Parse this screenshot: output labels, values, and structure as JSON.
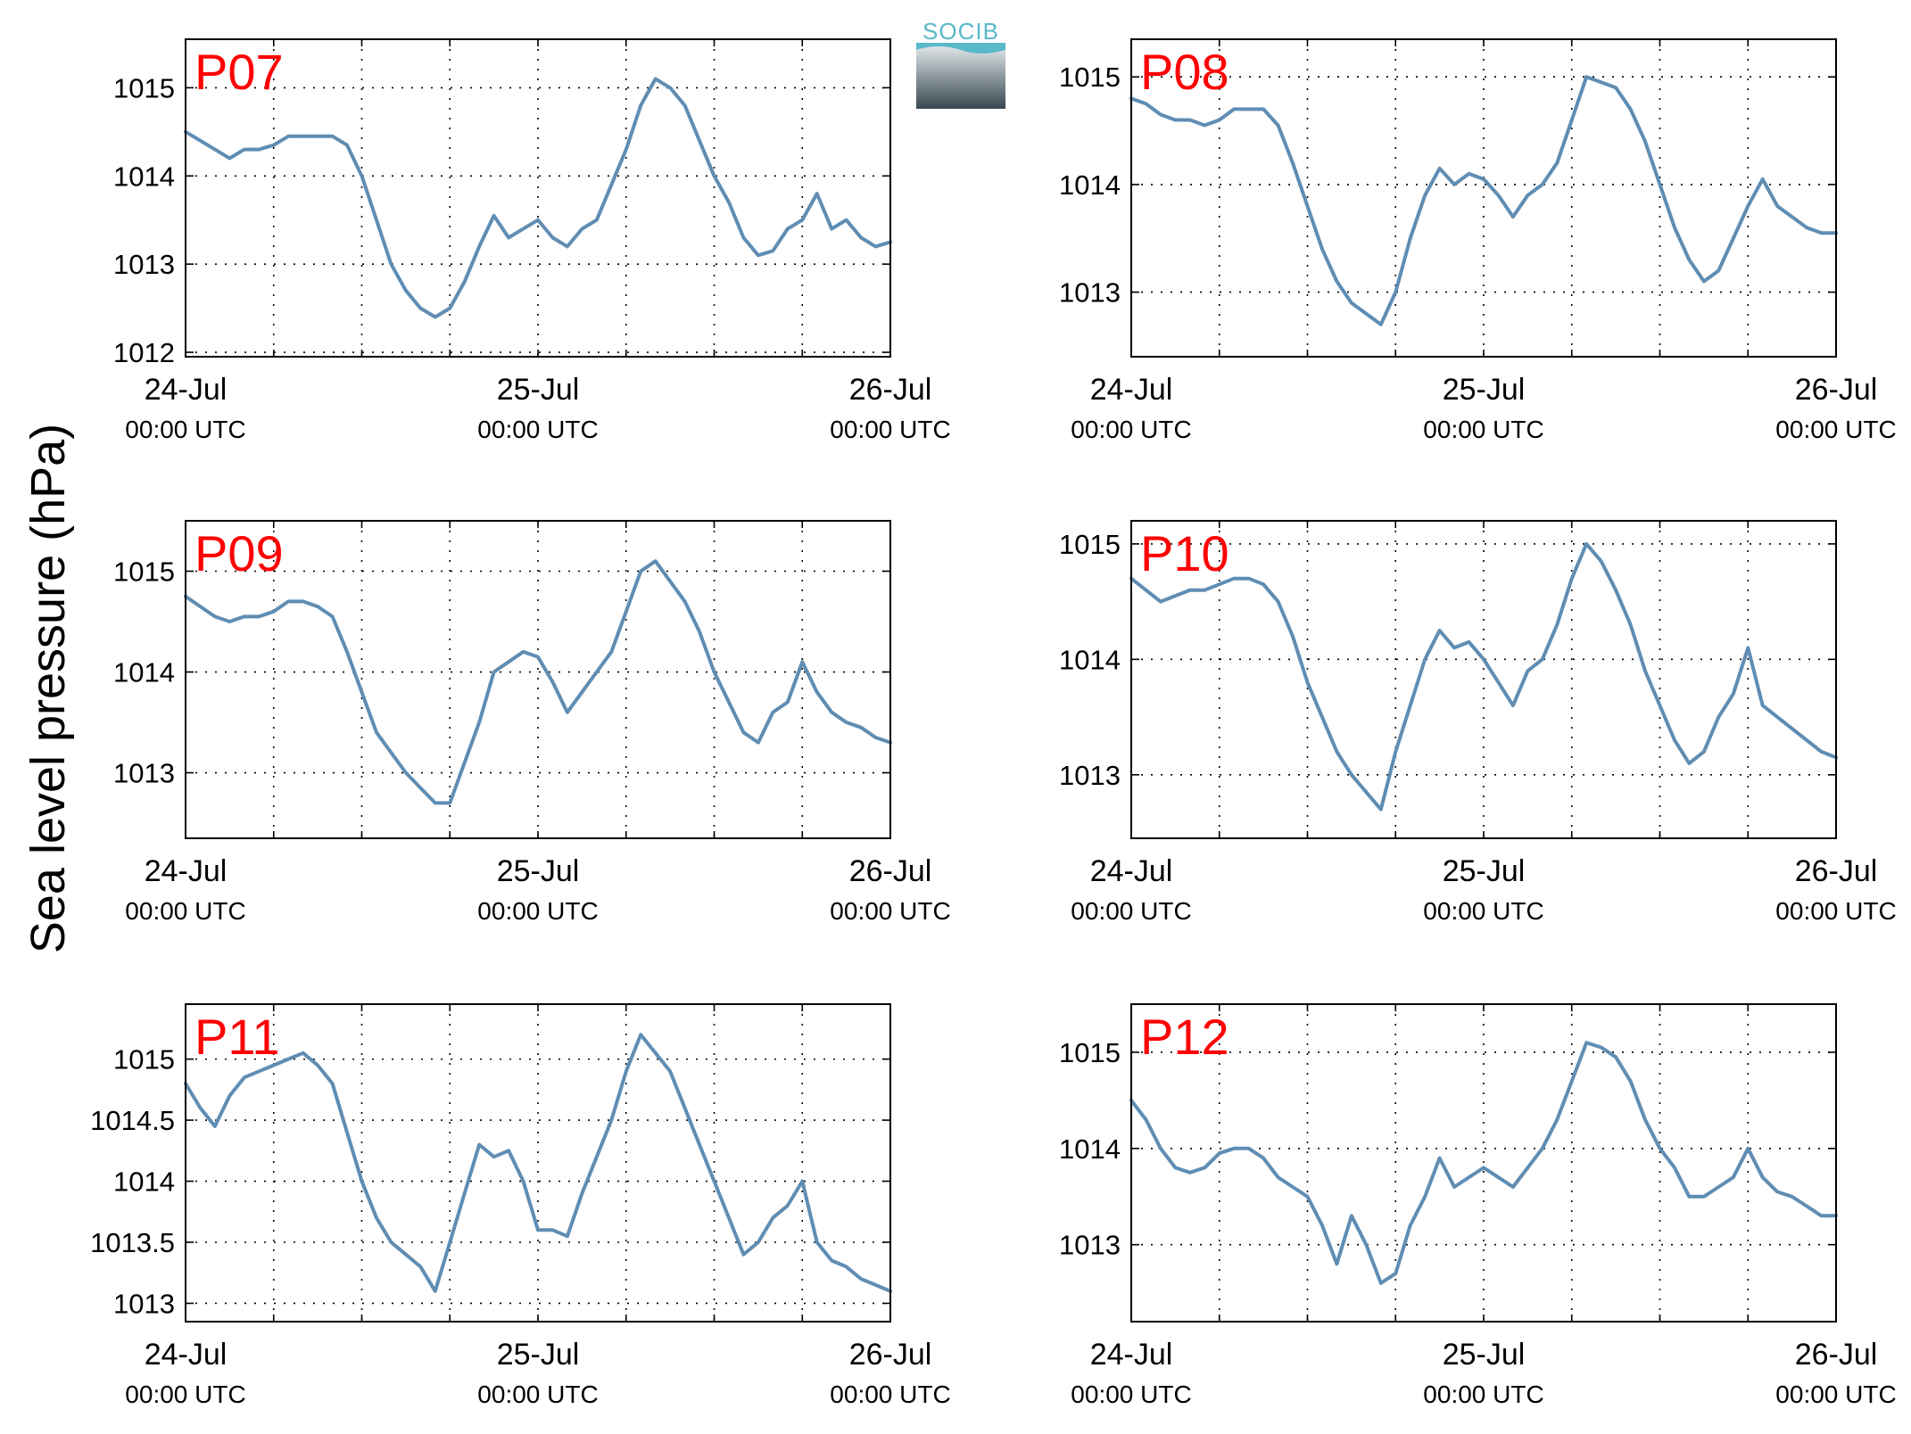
{
  "figure": {
    "ylabel": "Sea level pressure (hPa)",
    "logo_text": "SOCIB",
    "line_color": "#5f8db3",
    "title_color": "#ff0000"
  },
  "chart_data": [
    {
      "type": "line",
      "title": "P07",
      "x_ticks": [
        {
          "l1": "24-Jul",
          "l2": "00:00 UTC"
        },
        {
          "l1": "25-Jul",
          "l2": "00:00 UTC"
        },
        {
          "l1": "26-Jul",
          "l2": "00:00 UTC"
        }
      ],
      "xlim_hours": [
        0,
        48
      ],
      "ylim": [
        1011.95,
        1015.55
      ],
      "yticks": [
        "1012",
        "1013",
        "1014",
        "1015"
      ],
      "grid": true,
      "x_hours": [
        0,
        1,
        2,
        3,
        4,
        5,
        6,
        7,
        8,
        9,
        10,
        11,
        12,
        13,
        14,
        15,
        16,
        17,
        18,
        19,
        20,
        21,
        22,
        23,
        24,
        25,
        26,
        27,
        28,
        29,
        30,
        31,
        32,
        33,
        34,
        35,
        36,
        37,
        38,
        39,
        40,
        41,
        42,
        43,
        44,
        45,
        46,
        47,
        48
      ],
      "y": [
        1014.5,
        1014.4,
        1014.3,
        1014.2,
        1014.3,
        1014.3,
        1014.35,
        1014.45,
        1014.45,
        1014.45,
        1014.45,
        1014.35,
        1014.0,
        1013.5,
        1013.0,
        1012.7,
        1012.5,
        1012.4,
        1012.5,
        1012.8,
        1013.2,
        1013.55,
        1013.3,
        1013.4,
        1013.5,
        1013.3,
        1013.2,
        1013.4,
        1013.5,
        1013.9,
        1014.3,
        1014.8,
        1015.1,
        1015.0,
        1014.8,
        1014.4,
        1014.0,
        1013.7,
        1013.3,
        1013.1,
        1013.15,
        1013.4,
        1013.5,
        1013.8,
        1013.4,
        1013.5,
        1013.3,
        1013.2,
        1013.25
      ]
    },
    {
      "type": "line",
      "title": "P08",
      "x_ticks": [
        {
          "l1": "24-Jul",
          "l2": "00:00 UTC"
        },
        {
          "l1": "25-Jul",
          "l2": "00:00 UTC"
        },
        {
          "l1": "26-Jul",
          "l2": "00:00 UTC"
        }
      ],
      "xlim_hours": [
        0,
        48
      ],
      "ylim": [
        1012.4,
        1015.35
      ],
      "yticks": [
        "1013",
        "1014",
        "1015"
      ],
      "grid": true,
      "x_hours": [
        0,
        1,
        2,
        3,
        4,
        5,
        6,
        7,
        8,
        9,
        10,
        11,
        12,
        13,
        14,
        15,
        16,
        17,
        18,
        19,
        20,
        21,
        22,
        23,
        24,
        25,
        26,
        27,
        28,
        29,
        30,
        31,
        32,
        33,
        34,
        35,
        36,
        37,
        38,
        39,
        40,
        41,
        42,
        43,
        44,
        45,
        46,
        47,
        48
      ],
      "y": [
        1014.8,
        1014.75,
        1014.65,
        1014.6,
        1014.6,
        1014.55,
        1014.6,
        1014.7,
        1014.7,
        1014.7,
        1014.55,
        1014.2,
        1013.8,
        1013.4,
        1013.1,
        1012.9,
        1012.8,
        1012.7,
        1013.0,
        1013.5,
        1013.9,
        1014.15,
        1014.0,
        1014.1,
        1014.05,
        1013.9,
        1013.7,
        1013.9,
        1014.0,
        1014.2,
        1014.6,
        1015.0,
        1014.95,
        1014.9,
        1014.7,
        1014.4,
        1014.0,
        1013.6,
        1013.3,
        1013.1,
        1013.2,
        1013.5,
        1013.8,
        1014.05,
        1013.8,
        1013.7,
        1013.6,
        1013.55,
        1013.55
      ]
    },
    {
      "type": "line",
      "title": "P09",
      "x_ticks": [
        {
          "l1": "24-Jul",
          "l2": "00:00 UTC"
        },
        {
          "l1": "25-Jul",
          "l2": "00:00 UTC"
        },
        {
          "l1": "26-Jul",
          "l2": "00:00 UTC"
        }
      ],
      "xlim_hours": [
        0,
        48
      ],
      "ylim": [
        1012.35,
        1015.5
      ],
      "yticks": [
        "1013",
        "1014",
        "1015"
      ],
      "grid": true,
      "x_hours": [
        0,
        1,
        2,
        3,
        4,
        5,
        6,
        7,
        8,
        9,
        10,
        11,
        12,
        13,
        14,
        15,
        16,
        17,
        18,
        19,
        20,
        21,
        22,
        23,
        24,
        25,
        26,
        27,
        28,
        29,
        30,
        31,
        32,
        33,
        34,
        35,
        36,
        37,
        38,
        39,
        40,
        41,
        42,
        43,
        44,
        45,
        46,
        47,
        48
      ],
      "y": [
        1014.75,
        1014.65,
        1014.55,
        1014.5,
        1014.55,
        1014.55,
        1014.6,
        1014.7,
        1014.7,
        1014.65,
        1014.55,
        1014.2,
        1013.8,
        1013.4,
        1013.2,
        1013.0,
        1012.85,
        1012.7,
        1012.7,
        1013.1,
        1013.5,
        1014.0,
        1014.1,
        1014.2,
        1014.15,
        1013.9,
        1013.6,
        1013.8,
        1014.0,
        1014.2,
        1014.6,
        1015.0,
        1015.1,
        1014.9,
        1014.7,
        1014.4,
        1014.0,
        1013.7,
        1013.4,
        1013.3,
        1013.6,
        1013.7,
        1014.1,
        1013.8,
        1013.6,
        1013.5,
        1013.45,
        1013.35,
        1013.3
      ]
    },
    {
      "type": "line",
      "title": "P10",
      "x_ticks": [
        {
          "l1": "24-Jul",
          "l2": "00:00 UTC"
        },
        {
          "l1": "25-Jul",
          "l2": "00:00 UTC"
        },
        {
          "l1": "26-Jul",
          "l2": "00:00 UTC"
        }
      ],
      "xlim_hours": [
        0,
        48
      ],
      "ylim": [
        1012.45,
        1015.2
      ],
      "yticks": [
        "1013",
        "1014",
        "1015"
      ],
      "grid": true,
      "x_hours": [
        0,
        1,
        2,
        3,
        4,
        5,
        6,
        7,
        8,
        9,
        10,
        11,
        12,
        13,
        14,
        15,
        16,
        17,
        18,
        19,
        20,
        21,
        22,
        23,
        24,
        25,
        26,
        27,
        28,
        29,
        30,
        31,
        32,
        33,
        34,
        35,
        36,
        37,
        38,
        39,
        40,
        41,
        42,
        43,
        44,
        45,
        46,
        47,
        48
      ],
      "y": [
        1014.7,
        1014.6,
        1014.5,
        1014.55,
        1014.6,
        1014.6,
        1014.65,
        1014.7,
        1014.7,
        1014.65,
        1014.5,
        1014.2,
        1013.8,
        1013.5,
        1013.2,
        1013.0,
        1012.85,
        1012.7,
        1013.2,
        1013.6,
        1014.0,
        1014.25,
        1014.1,
        1014.15,
        1014.0,
        1013.8,
        1013.6,
        1013.9,
        1014.0,
        1014.3,
        1014.7,
        1015.0,
        1014.85,
        1014.6,
        1014.3,
        1013.9,
        1013.6,
        1013.3,
        1013.1,
        1013.2,
        1013.5,
        1013.7,
        1014.1,
        1013.6,
        1013.5,
        1013.4,
        1013.3,
        1013.2,
        1013.15
      ]
    },
    {
      "type": "line",
      "title": "P11",
      "x_ticks": [
        {
          "l1": "24-Jul",
          "l2": "00:00 UTC"
        },
        {
          "l1": "25-Jul",
          "l2": "00:00 UTC"
        },
        {
          "l1": "26-Jul",
          "l2": "00:00 UTC"
        }
      ],
      "xlim_hours": [
        0,
        48
      ],
      "ylim": [
        1012.85,
        1015.45
      ],
      "yticks": [
        "1013",
        "1013.5",
        "1014",
        "1014.5",
        "1015"
      ],
      "grid": true,
      "x_hours": [
        0,
        1,
        2,
        3,
        4,
        5,
        6,
        7,
        8,
        9,
        10,
        11,
        12,
        13,
        14,
        15,
        16,
        17,
        18,
        19,
        20,
        21,
        22,
        23,
        24,
        25,
        26,
        27,
        28,
        29,
        30,
        31,
        32,
        33,
        34,
        35,
        36,
        37,
        38,
        39,
        40,
        41,
        42,
        43,
        44,
        45,
        46,
        47,
        48
      ],
      "y": [
        1014.8,
        1014.6,
        1014.45,
        1014.7,
        1014.85,
        1014.9,
        1014.95,
        1015.0,
        1015.05,
        1014.95,
        1014.8,
        1014.4,
        1014.0,
        1013.7,
        1013.5,
        1013.4,
        1013.3,
        1013.1,
        1013.5,
        1013.9,
        1014.3,
        1014.2,
        1014.25,
        1014.0,
        1013.6,
        1013.6,
        1013.55,
        1013.9,
        1014.2,
        1014.5,
        1014.9,
        1015.2,
        1015.05,
        1014.9,
        1014.6,
        1014.3,
        1014.0,
        1013.7,
        1013.4,
        1013.5,
        1013.7,
        1013.8,
        1014.0,
        1013.5,
        1013.35,
        1013.3,
        1013.2,
        1013.15,
        1013.1
      ]
    },
    {
      "type": "line",
      "title": "P12",
      "x_ticks": [
        {
          "l1": "24-Jul",
          "l2": "00:00 UTC"
        },
        {
          "l1": "25-Jul",
          "l2": "00:00 UTC"
        },
        {
          "l1": "26-Jul",
          "l2": "00:00 UTC"
        }
      ],
      "xlim_hours": [
        0,
        48
      ],
      "ylim": [
        1012.2,
        1015.5
      ],
      "yticks": [
        "1013",
        "1014",
        "1015"
      ],
      "grid": true,
      "x_hours": [
        0,
        1,
        2,
        3,
        4,
        5,
        6,
        7,
        8,
        9,
        10,
        11,
        12,
        13,
        14,
        15,
        16,
        17,
        18,
        19,
        20,
        21,
        22,
        23,
        24,
        25,
        26,
        27,
        28,
        29,
        30,
        31,
        32,
        33,
        34,
        35,
        36,
        37,
        38,
        39,
        40,
        41,
        42,
        43,
        44,
        45,
        46,
        47,
        48
      ],
      "y": [
        1014.5,
        1014.3,
        1014.0,
        1013.8,
        1013.75,
        1013.8,
        1013.95,
        1014.0,
        1014.0,
        1013.9,
        1013.7,
        1013.6,
        1013.5,
        1013.2,
        1012.8,
        1013.3,
        1013.0,
        1012.6,
        1012.7,
        1013.2,
        1013.5,
        1013.9,
        1013.6,
        1013.7,
        1013.8,
        1013.7,
        1013.6,
        1013.8,
        1014.0,
        1014.3,
        1014.7,
        1015.1,
        1015.05,
        1014.95,
        1014.7,
        1014.3,
        1014.0,
        1013.8,
        1013.5,
        1013.5,
        1013.6,
        1013.7,
        1014.0,
        1013.7,
        1013.55,
        1013.5,
        1013.4,
        1013.3,
        1013.3
      ]
    }
  ]
}
